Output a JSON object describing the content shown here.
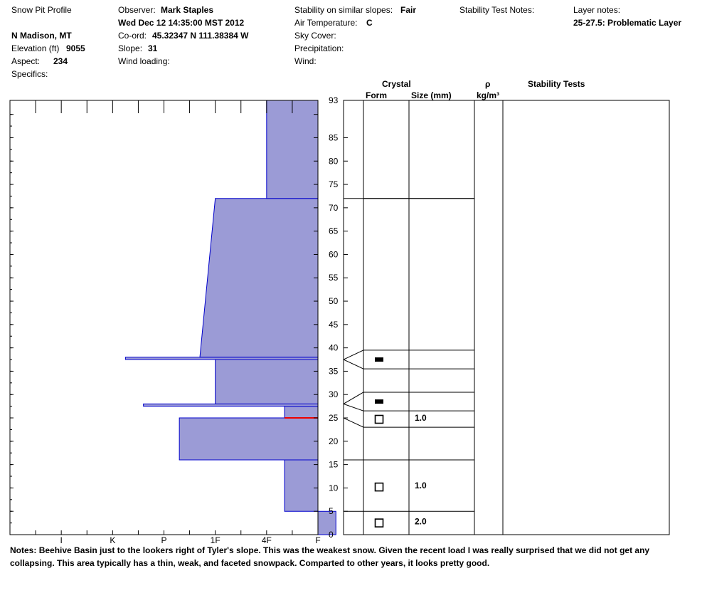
{
  "header": {
    "title": "Snow Pit Profile",
    "location": "N Madison, MT",
    "elevation_label": "Elevation (ft)",
    "elevation_value": "9055",
    "aspect_label": "Aspect:",
    "aspect_value": "234",
    "specifics_label": "Specifics:",
    "observer_label": "Observer:",
    "observer_value": "Mark Staples",
    "datetime": "Wed Dec 12 14:35:00 MST 2012",
    "coord_label": "Co-ord:",
    "coord_value": "45.32347 N 111.38384 W",
    "slope_label": "Slope:",
    "slope_value": "31",
    "wind_loading_label": "Wind loading:",
    "stability_label": "Stability on similar slopes:",
    "stability_value": "Fair",
    "air_temp_label": "Air Temperature:",
    "air_temp_value": "C",
    "sky_label": "Sky Cover:",
    "precip_label": "Precipitation:",
    "wind_label": "Wind:",
    "stability_notes_label": "Stability Test Notes:",
    "layer_notes_label": "Layer notes:",
    "layer_notes_value": "25-27.5: Problematic Layer"
  },
  "columns": {
    "crystal": "Crystal",
    "form": "Form",
    "size": "Size (mm)",
    "rho": "ρ",
    "density_unit": "kg/m³",
    "stability_tests": "Stability Tests"
  },
  "notes": {
    "label": "Notes:",
    "text": "Beehive Basin just to the lookers right of Tyler's slope.  This was the weakest snow.  Given the recent load I was really surprised that we did not get any collapsing.  This area typically has a thin, weak, and faceted snowpack.  Comparted to other years, it looks pretty good."
  },
  "chart_data": {
    "type": "area",
    "title": "",
    "xlabel": "",
    "ylabel": "",
    "x_categories": [
      "I",
      "K",
      "P",
      "1F",
      "4F",
      "F"
    ],
    "ylim": [
      0,
      93
    ],
    "y_ticks": [
      0,
      5,
      10,
      15,
      20,
      25,
      30,
      35,
      40,
      45,
      50,
      55,
      60,
      65,
      70,
      75,
      80,
      85,
      93
    ],
    "hardness_layers": [
      {
        "bottom": 0,
        "top": 5,
        "hardness": 6.35,
        "hardness_top": 6.35
      },
      {
        "bottom": 5,
        "top": 16,
        "hardness": 5.35,
        "hardness_top": 5.35
      },
      {
        "bottom": 16,
        "top": 25,
        "hardness": 3.3,
        "hardness_top": 3.3
      },
      {
        "bottom": 25,
        "top": 27.5,
        "hardness": 5.35,
        "hardness_top": 5.35
      },
      {
        "bottom": 27.5,
        "top": 28,
        "hardness": 2.6,
        "hardness_top": 2.6
      },
      {
        "bottom": 28,
        "top": 37.5,
        "hardness": 4.0,
        "hardness_top": 4.0
      },
      {
        "bottom": 37.5,
        "top": 38,
        "hardness": 2.25,
        "hardness_top": 2.25
      },
      {
        "bottom": 38,
        "top": 72,
        "hardness": 3.7,
        "hardness_top": 4.0
      },
      {
        "bottom": 72,
        "top": 93,
        "hardness": 5.0,
        "hardness_top": 5.0
      }
    ],
    "problem_layer_depth": 25,
    "layer_boundaries": [
      5,
      16,
      23,
      26.5,
      30.5,
      35.5,
      39.5,
      72
    ],
    "crystals": [
      {
        "depth": 2.5,
        "form": "faceted",
        "size": "2.0"
      },
      {
        "depth": 10.2,
        "form": "faceted",
        "size": "1.0"
      },
      {
        "depth": 24.7,
        "form": "faceted",
        "size": "1.0"
      },
      {
        "depth": 28.5,
        "form": "crust",
        "size": ""
      },
      {
        "depth": 37.5,
        "form": "crust",
        "size": ""
      }
    ]
  }
}
